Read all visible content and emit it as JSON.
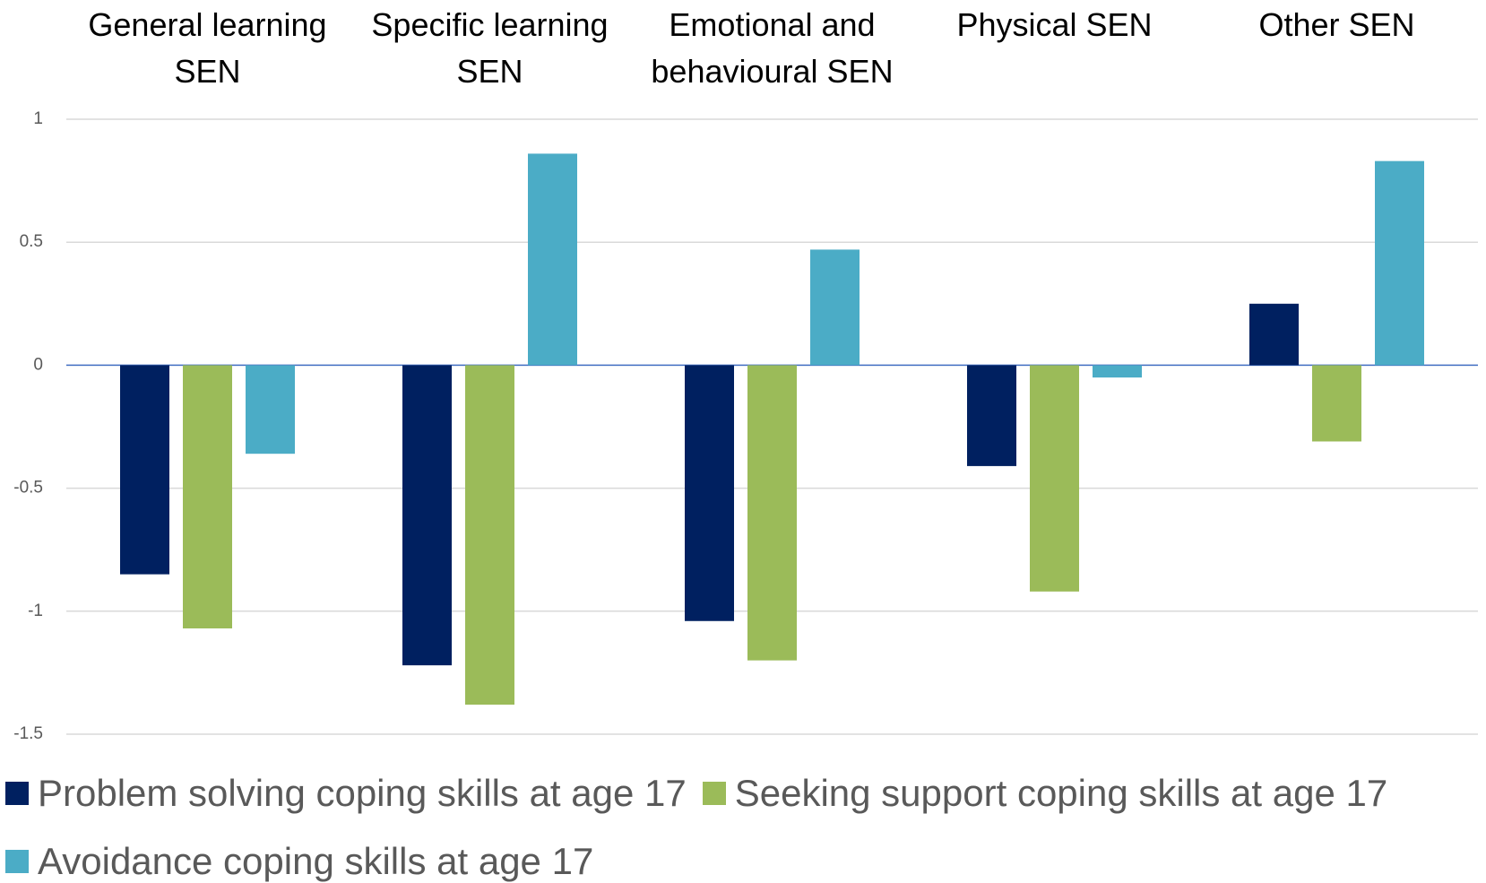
{
  "chart_data": {
    "type": "bar",
    "categories": [
      "General learning SEN",
      "Specific learning SEN",
      "Emotional and behavioural SEN",
      "Physical SEN",
      "Other SEN"
    ],
    "series": [
      {
        "name": "Problem solving coping skills at age 17",
        "color": "#002060",
        "values": [
          -0.85,
          -1.22,
          -1.04,
          -0.41,
          0.25
        ]
      },
      {
        "name": "Seeking support coping skills at age 17",
        "color": "#9bbb59",
        "values": [
          -1.07,
          -1.38,
          -1.2,
          -0.92,
          -0.31
        ]
      },
      {
        "name": "Avoidance coping skills at age 17",
        "color": "#4bacc6",
        "values": [
          -0.36,
          0.86,
          0.47,
          -0.05,
          0.83
        ]
      }
    ],
    "ylim": [
      -1.5,
      1
    ],
    "yticks": [
      1,
      0.5,
      0,
      -0.5,
      -1,
      -1.5
    ],
    "grid": true,
    "legend": "bottom"
  }
}
